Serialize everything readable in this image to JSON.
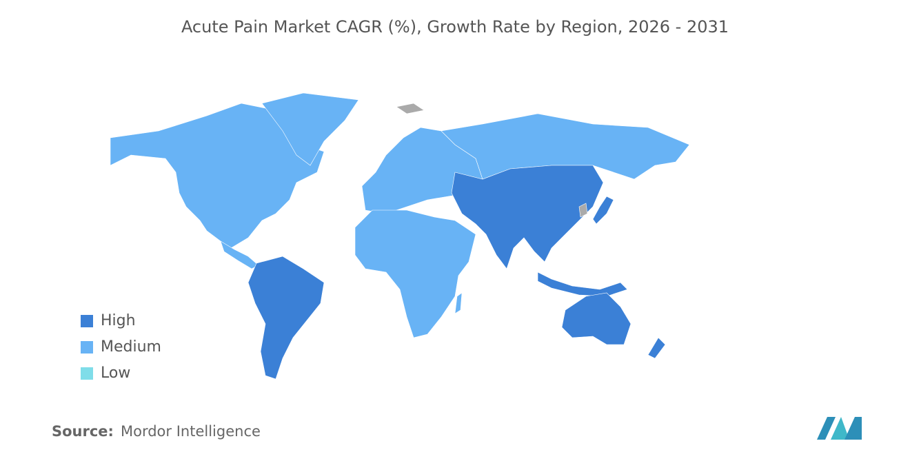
{
  "title": "Acute Pain Market CAGR (%), Growth Rate by Region, 2026 - 2031",
  "legend": [
    {
      "label": "High",
      "color": "#3b80d6"
    },
    {
      "label": "Medium",
      "color": "#68b3f5"
    },
    {
      "label": "Low",
      "color": "#7fdde9"
    }
  ],
  "source": {
    "label": "Source:",
    "name": "Mordor Intelligence"
  }
}
